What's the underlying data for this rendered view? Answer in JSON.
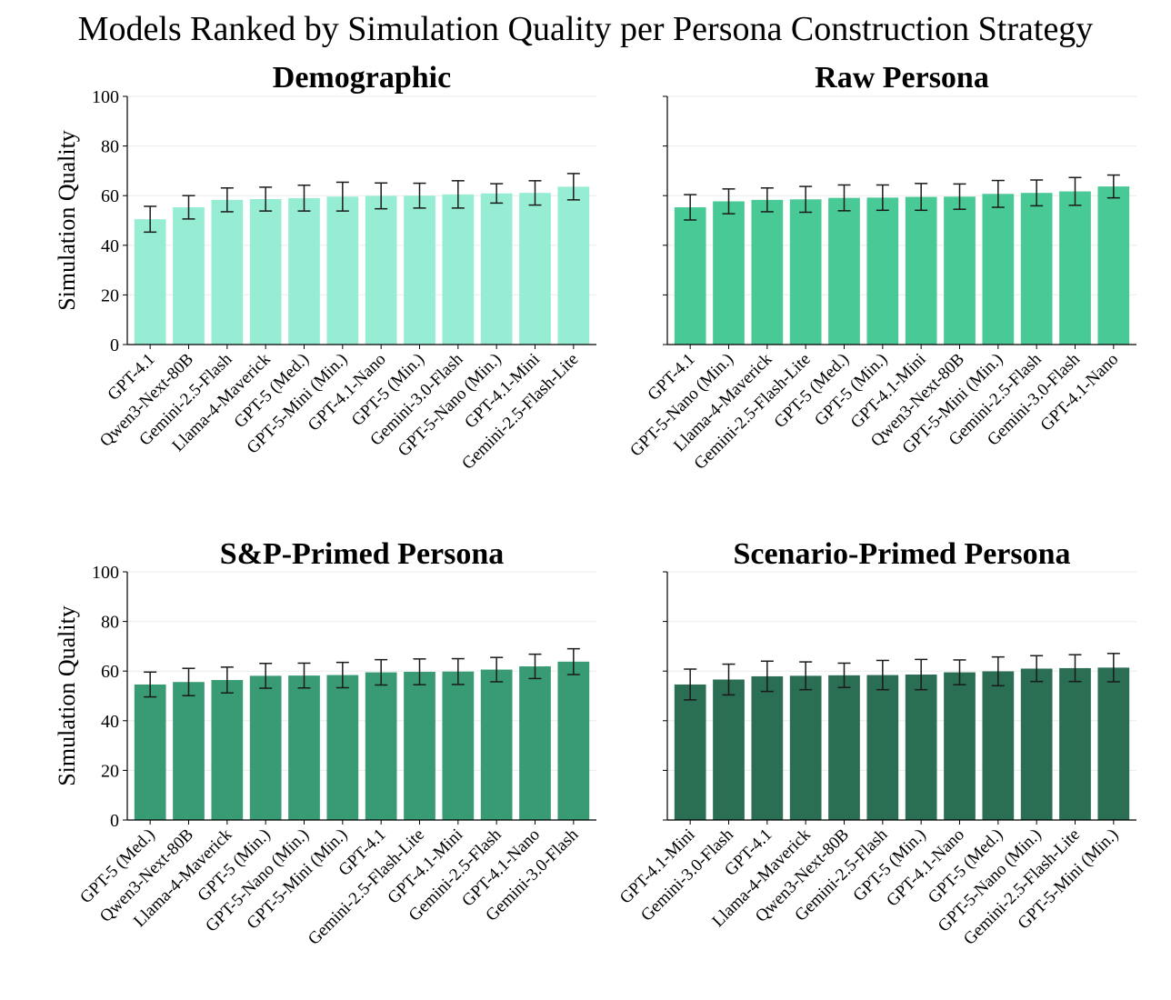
{
  "title": "Models Ranked by Simulation Quality per Persona Construction Strategy",
  "chart_data": [
    {
      "type": "bar",
      "title": "Demographic",
      "ylabel": "Simulation Quality",
      "xlabel": "",
      "ylim": [
        0,
        100
      ],
      "yticks": [
        0,
        20,
        40,
        60,
        80,
        100
      ],
      "color": "#96EDD3",
      "categories": [
        "GPT-4.1",
        "Qwen3-Next-80B",
        "Gemini-2.5-Flash",
        "Llama-4-Maverick",
        "GPT-5 (Med.)",
        "GPT-5-Mini (Min.)",
        "GPT-4.1-Nano",
        "GPT-5 (Min.)",
        "Gemini-3.0-Flash",
        "GPT-5-Nano (Min.)",
        "GPT-4.1-Mini",
        "Gemini-2.5-Flash-Lite"
      ],
      "values": [
        50.5,
        55.3,
        58.3,
        58.6,
        59.0,
        59.6,
        59.9,
        60.0,
        60.5,
        60.9,
        61.1,
        63.6
      ],
      "errors": [
        5.2,
        4.7,
        4.8,
        4.8,
        5.2,
        5.8,
        5.2,
        5.0,
        5.5,
        3.9,
        4.9,
        5.3
      ]
    },
    {
      "type": "bar",
      "title": "Raw Persona",
      "ylabel": "",
      "xlabel": "",
      "ylim": [
        0,
        100
      ],
      "yticks": [
        0,
        20,
        40,
        60,
        80,
        100
      ],
      "color": "#48C996",
      "categories": [
        "GPT-4.1",
        "GPT-5-Nano (Min.)",
        "Llama-4-Maverick",
        "Gemini-2.5-Flash-Lite",
        "GPT-5 (Med.)",
        "GPT-5 (Min.)",
        "GPT-4.1-Mini",
        "Qwen3-Next-80B",
        "GPT-5-Mini (Min.)",
        "Gemini-2.5-Flash",
        "Gemini-3.0-Flash",
        "GPT-4.1-Nano"
      ],
      "values": [
        55.3,
        57.7,
        58.3,
        58.5,
        59.1,
        59.2,
        59.5,
        59.6,
        60.7,
        61.1,
        61.7,
        63.7
      ],
      "errors": [
        5.1,
        5.0,
        4.8,
        5.2,
        5.2,
        5.1,
        5.4,
        5.1,
        5.4,
        5.2,
        5.6,
        4.6
      ]
    },
    {
      "type": "bar",
      "title": "S&P-Primed Persona",
      "ylabel": "Simulation Quality",
      "xlabel": "",
      "ylim": [
        0,
        100
      ],
      "yticks": [
        0,
        20,
        40,
        60,
        80,
        100
      ],
      "color": "#389B74",
      "categories": [
        "GPT-5 (Med.)",
        "Qwen3-Next-80B",
        "Llama-4-Maverick",
        "GPT-5 (Min.)",
        "GPT-5-Nano (Min.)",
        "GPT-5-Mini (Min.)",
        "GPT-4.1",
        "Gemini-2.5-Flash-Lite",
        "GPT-4.1-Mini",
        "Gemini-2.5-Flash",
        "GPT-4.1-Nano",
        "Gemini-3.0-Flash"
      ],
      "values": [
        54.6,
        55.6,
        56.4,
        58.1,
        58.2,
        58.4,
        59.5,
        59.7,
        59.8,
        60.6,
        61.9,
        63.8
      ],
      "errors": [
        5.0,
        5.5,
        5.2,
        5.0,
        5.0,
        5.1,
        5.1,
        5.2,
        5.2,
        4.9,
        4.9,
        5.2
      ]
    },
    {
      "type": "bar",
      "title": "Scenario-Primed Persona",
      "ylabel": "",
      "xlabel": "",
      "ylim": [
        0,
        100
      ],
      "yticks": [
        0,
        20,
        40,
        60,
        80,
        100
      ],
      "color": "#2A6E53",
      "categories": [
        "GPT-4.1-Mini",
        "Gemini-3.0-Flash",
        "GPT-4.1",
        "Llama-4-Maverick",
        "Qwen3-Next-80B",
        "Gemini-2.5-Flash",
        "GPT-5 (Min.)",
        "GPT-4.1-Nano",
        "GPT-5 (Med.)",
        "GPT-5-Nano (Min.)",
        "Gemini-2.5-Flash-Lite",
        "GPT-5-Mini (Min.)"
      ],
      "values": [
        54.6,
        56.6,
        57.9,
        58.1,
        58.3,
        58.4,
        58.6,
        59.5,
        59.9,
        61.0,
        61.2,
        61.4
      ],
      "errors": [
        6.2,
        6.2,
        6.1,
        5.6,
        4.9,
        5.9,
        6.1,
        5.0,
        5.8,
        5.2,
        5.4,
        5.7
      ]
    }
  ]
}
